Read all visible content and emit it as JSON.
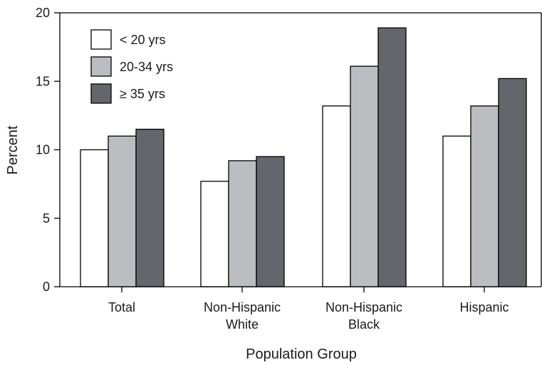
{
  "chart_data": {
    "type": "bar",
    "categories": [
      "Total",
      "Non-Hispanic White",
      "Non-Hispanic Black",
      "Hispanic"
    ],
    "category_labels": [
      [
        "Total"
      ],
      [
        "Non-Hispanic",
        "White"
      ],
      [
        "Non-Hispanic",
        "Black"
      ],
      [
        "Hispanic"
      ]
    ],
    "series": [
      {
        "name": "< 20 yrs",
        "values": [
          10.0,
          7.7,
          13.2,
          11.0
        ],
        "color": "#ffffff"
      },
      {
        "name": "20-34 yrs",
        "values": [
          11.0,
          9.2,
          16.1,
          13.2
        ],
        "color": "#bcbdc1"
      },
      {
        "name": "≥ 35 yrs",
        "values": [
          11.5,
          9.5,
          18.9,
          15.2
        ],
        "color": "#65666b"
      }
    ],
    "xlabel": "Population Group",
    "ylabel": "Percent",
    "ylim": [
      0,
      20
    ],
    "yticks": [
      0,
      5,
      10,
      15,
      20
    ],
    "ytick_labels": [
      "0",
      "5",
      "10",
      "15",
      "20"
    ],
    "grid": false,
    "legend_position": "top-left",
    "colors": {
      "bar_stroke": "#000000",
      "axis": "#000000",
      "text": "#1a1a1a"
    }
  }
}
